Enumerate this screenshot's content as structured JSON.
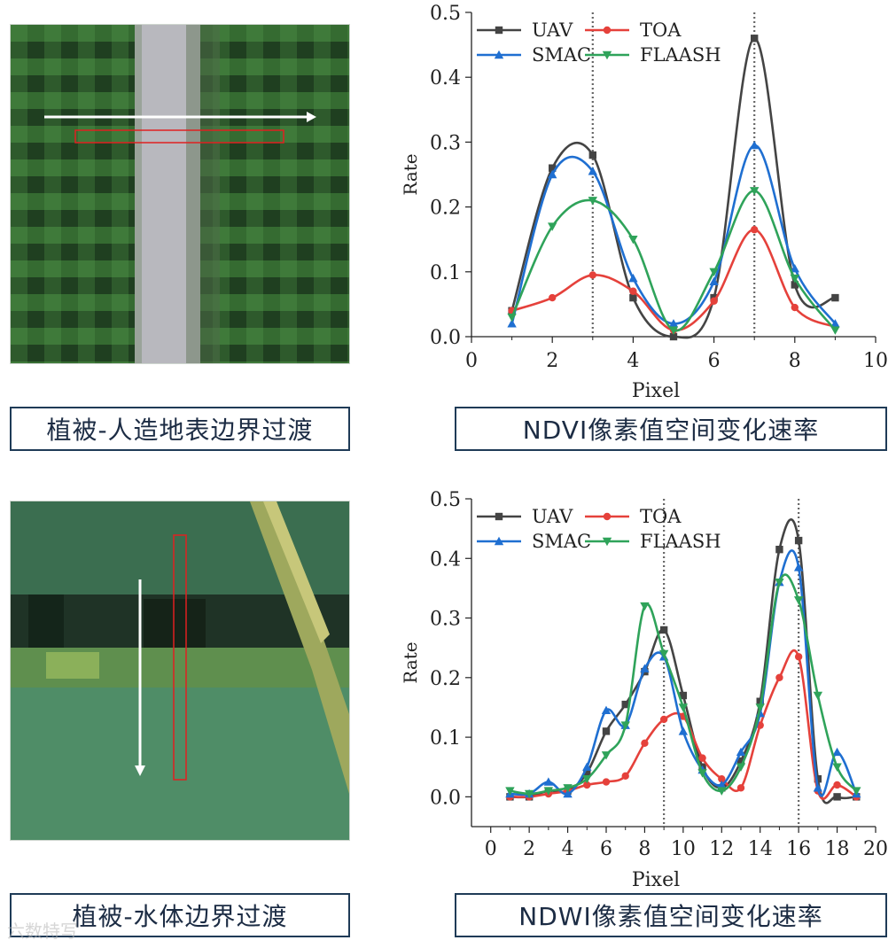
{
  "captions": {
    "top_left": "植被-人造地表边界过渡",
    "top_right": "NDVI像素值空间变化速率",
    "bottom_left": "植被-水体边界过渡",
    "bottom_right": "NDWI像素值空间变化速率"
  },
  "watermark": "六数特写",
  "colors": {
    "UAV": "#444444",
    "TOA": "#e5413b",
    "SMAC": "#1f6fd1",
    "FLAASH": "#2fa35a"
  },
  "chart_data": [
    {
      "type": "line",
      "xlabel": "Pixel",
      "ylabel": "Rate",
      "xlim": [
        0,
        10
      ],
      "ylim": [
        0,
        0.5
      ],
      "xticks": [
        0,
        2,
        4,
        6,
        8,
        10
      ],
      "yticks": [
        0.0,
        0.1,
        0.2,
        0.3,
        0.4,
        0.5
      ],
      "ytick_labels": [
        "0.0",
        "0.1",
        "0.2",
        "0.3",
        "0.4",
        "0.5"
      ],
      "vlines": [
        3,
        7
      ],
      "legend": [
        "UAV",
        "TOA",
        "SMAC",
        "FLAASH"
      ],
      "series": [
        {
          "name": "UAV",
          "marker": "square",
          "x": [
            1,
            2,
            3,
            4,
            5,
            6,
            7,
            8,
            9
          ],
          "y": [
            0.04,
            0.26,
            0.28,
            0.06,
            0.0,
            0.06,
            0.46,
            0.08,
            0.06
          ]
        },
        {
          "name": "TOA",
          "marker": "circle",
          "x": [
            1,
            2,
            3,
            4,
            5,
            6,
            7,
            8,
            9
          ],
          "y": [
            0.04,
            0.06,
            0.095,
            0.07,
            0.01,
            0.055,
            0.165,
            0.045,
            0.015
          ]
        },
        {
          "name": "SMAC",
          "marker": "triangle-up",
          "x": [
            1,
            2,
            3,
            4,
            5,
            6,
            7,
            8,
            9
          ],
          "y": [
            0.02,
            0.25,
            0.255,
            0.09,
            0.02,
            0.085,
            0.295,
            0.105,
            0.02
          ]
        },
        {
          "name": "FLAASH",
          "marker": "triangle-down",
          "x": [
            1,
            2,
            3,
            4,
            5,
            6,
            7,
            8,
            9
          ],
          "y": [
            0.03,
            0.17,
            0.21,
            0.15,
            0.01,
            0.1,
            0.225,
            0.09,
            0.01
          ]
        }
      ]
    },
    {
      "type": "line",
      "xlabel": "Pixel",
      "ylabel": "Rate",
      "xlim": [
        -1,
        20
      ],
      "ylim": [
        -0.05,
        0.5
      ],
      "xticks": [
        0,
        2,
        4,
        6,
        8,
        10,
        12,
        14,
        16,
        18,
        20
      ],
      "yticks": [
        0.0,
        0.1,
        0.2,
        0.3,
        0.4,
        0.5
      ],
      "ytick_labels": [
        "0.0",
        "0.1",
        "0.2",
        "0.3",
        "0.4",
        "0.5"
      ],
      "vlines": [
        9,
        16
      ],
      "legend": [
        "UAV",
        "TOA",
        "SMAC",
        "FLAASH"
      ],
      "series": [
        {
          "name": "UAV",
          "marker": "square",
          "x": [
            1,
            2,
            3,
            4,
            5,
            6,
            7,
            8,
            9,
            10,
            11,
            12,
            13,
            14,
            15,
            16,
            17,
            18,
            19
          ],
          "y": [
            0.0,
            0.0,
            0.01,
            0.01,
            0.04,
            0.11,
            0.155,
            0.21,
            0.28,
            0.17,
            0.05,
            0.015,
            0.06,
            0.16,
            0.415,
            0.43,
            0.03,
            0.0,
            0.0
          ]
        },
        {
          "name": "TOA",
          "marker": "circle",
          "x": [
            1,
            2,
            3,
            4,
            5,
            6,
            7,
            8,
            9,
            10,
            11,
            12,
            13,
            14,
            15,
            16,
            17,
            18,
            19
          ],
          "y": [
            0.0,
            0.0,
            0.005,
            0.01,
            0.02,
            0.025,
            0.035,
            0.09,
            0.13,
            0.135,
            0.065,
            0.03,
            0.015,
            0.12,
            0.2,
            0.235,
            0.01,
            0.02,
            0.0
          ]
        },
        {
          "name": "SMAC",
          "marker": "triangle-up",
          "x": [
            1,
            2,
            3,
            4,
            5,
            6,
            7,
            8,
            9,
            10,
            11,
            12,
            13,
            14,
            15,
            16,
            17,
            18,
            19
          ],
          "y": [
            0.005,
            0.005,
            0.025,
            0.005,
            0.05,
            0.145,
            0.12,
            0.215,
            0.235,
            0.11,
            0.045,
            0.02,
            0.075,
            0.14,
            0.36,
            0.385,
            0.015,
            0.075,
            0.005
          ]
        },
        {
          "name": "FLAASH",
          "marker": "triangle-down",
          "x": [
            1,
            2,
            3,
            4,
            5,
            6,
            7,
            8,
            9,
            10,
            11,
            12,
            13,
            14,
            15,
            16,
            17,
            18,
            19
          ],
          "y": [
            0.01,
            0.005,
            0.01,
            0.015,
            0.03,
            0.07,
            0.12,
            0.32,
            0.24,
            0.15,
            0.04,
            0.01,
            0.05,
            0.15,
            0.36,
            0.33,
            0.17,
            0.05,
            0.01
          ]
        }
      ]
    }
  ]
}
